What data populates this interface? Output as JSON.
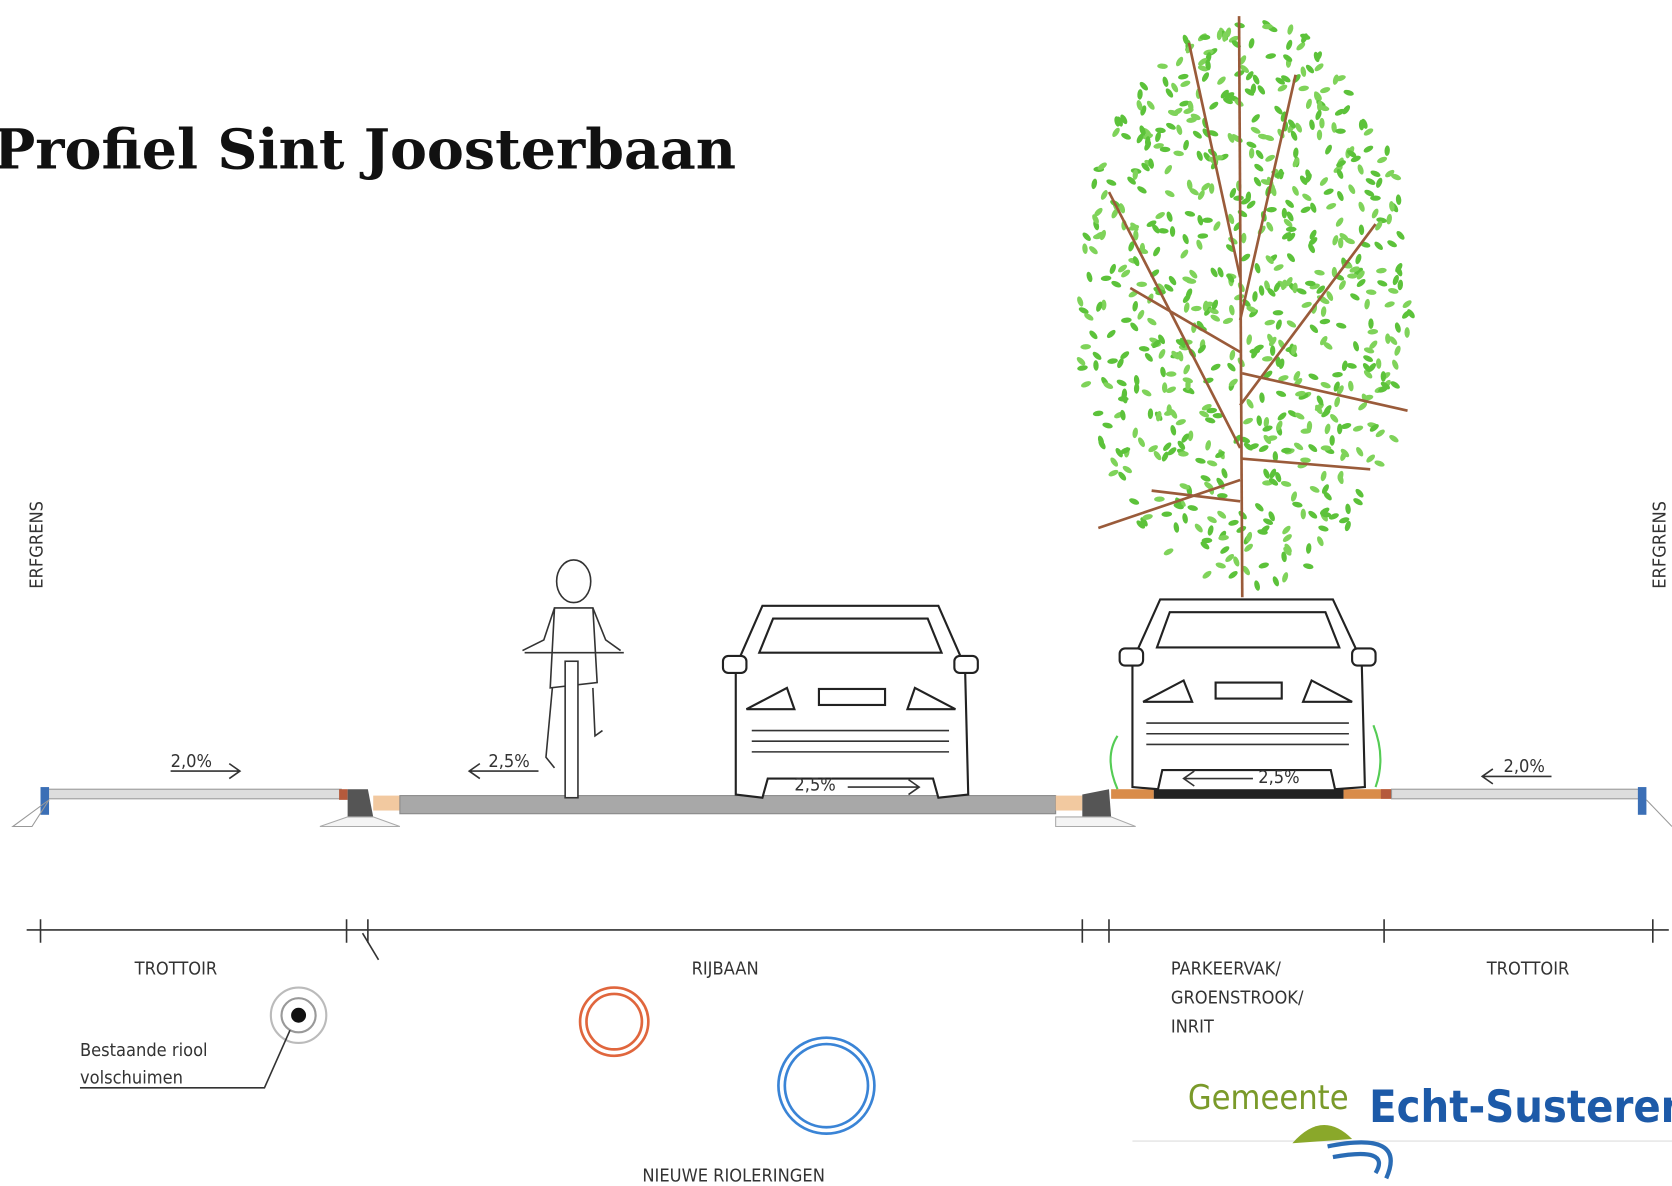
{
  "title": "Profiel Sint Joosterbaan",
  "boundary_labels": [
    "ERFGRENS",
    "ERFGRENS"
  ],
  "slopes": [
    "2,0%",
    "2,5%",
    "2,5%",
    "2,5%",
    "2,0%"
  ],
  "sections": {
    "left_sidewalk": "TROTTOIR",
    "road": "RIJBAAN",
    "parking": [
      "PARKEERVAK/",
      "GROENSTROOK/",
      "INRIT"
    ],
    "right_sidewalk": "TROTTOIR"
  },
  "existing_sewer": [
    "Bestaande riool",
    "volschuimen"
  ],
  "new_sewers": "NIEUWE RIOLERINGEN",
  "logo": {
    "prefix": "Gemeente",
    "name": "Echt-Susteren"
  }
}
